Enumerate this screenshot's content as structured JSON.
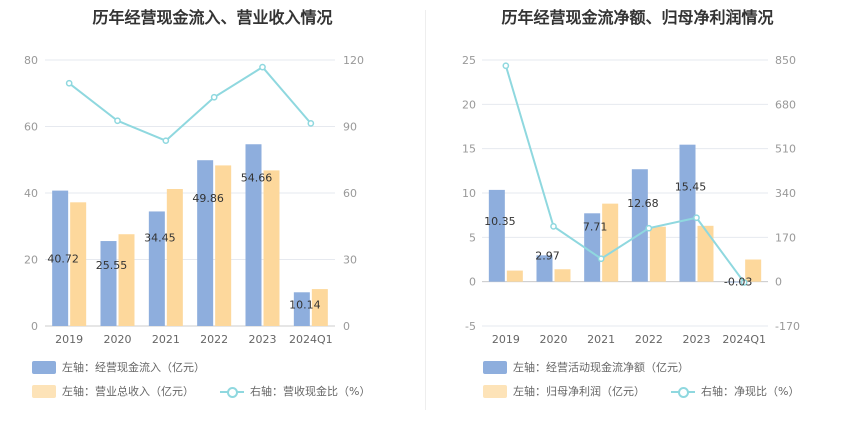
{
  "colors": {
    "bar1": "#8eaedd",
    "bar2": "#fdd89c",
    "line": "#8fd8df",
    "grid": "#e6e9ef"
  },
  "chart_data": [
    {
      "type": "bar",
      "title": "历年经营现金流入、营业收入情况",
      "categories": [
        "2019",
        "2020",
        "2021",
        "2022",
        "2023",
        "2024Q1"
      ],
      "left_axis": {
        "min": 0,
        "max": 80,
        "ticks": [
          "0",
          "20",
          "40",
          "60",
          "80"
        ]
      },
      "right_axis": {
        "min": 0,
        "max": 120,
        "ticks": [
          "0",
          "30",
          "60",
          "90",
          "120"
        ]
      },
      "series": [
        {
          "name": "左轴：经营现金流入（亿元）",
          "type": "bar",
          "axis": "left",
          "values": [
            40.72,
            25.55,
            34.45,
            49.86,
            54.66,
            10.14
          ],
          "labels": [
            "40.72",
            "25.55",
            "34.45",
            "49.86",
            "54.66",
            "10.14"
          ]
        },
        {
          "name": "左轴：营业总收入（亿元）",
          "type": "bar",
          "axis": "left",
          "values": [
            37.2,
            27.6,
            41.2,
            48.3,
            46.8,
            11.1
          ]
        },
        {
          "name": "右轴：营收现金比（%）",
          "type": "line",
          "axis": "right",
          "values": [
            109.5,
            92.6,
            83.6,
            103.2,
            116.8,
            91.4
          ]
        }
      ]
    },
    {
      "type": "bar",
      "title": "历年经营现金流净额、归母净利润情况",
      "categories": [
        "2019",
        "2020",
        "2021",
        "2022",
        "2023",
        "2024Q1"
      ],
      "left_axis": {
        "min": -5,
        "max": 25,
        "ticks": [
          "-5",
          "0",
          "5",
          "10",
          "15",
          "20",
          "25"
        ]
      },
      "right_axis": {
        "min": -170,
        "max": 850,
        "ticks": [
          "-170",
          "0",
          "170",
          "340",
          "510",
          "680",
          "850"
        ]
      },
      "series": [
        {
          "name": "左轴：经营活动现金流净额（亿元）",
          "type": "bar",
          "axis": "left",
          "values": [
            10.35,
            2.97,
            7.71,
            12.68,
            15.45,
            -0.03
          ],
          "labels": [
            "10.35",
            "2.97",
            "7.71",
            "12.68",
            "15.45",
            "-0.03"
          ]
        },
        {
          "name": "左轴：归母净利润（亿元）",
          "type": "bar",
          "axis": "left",
          "values": [
            1.25,
            1.4,
            8.8,
            6.2,
            6.3,
            2.5
          ]
        },
        {
          "name": "右轴：净现比（%）",
          "type": "line",
          "axis": "right",
          "values": [
            828,
            212,
            88,
            205,
            245,
            -3
          ]
        }
      ]
    }
  ]
}
